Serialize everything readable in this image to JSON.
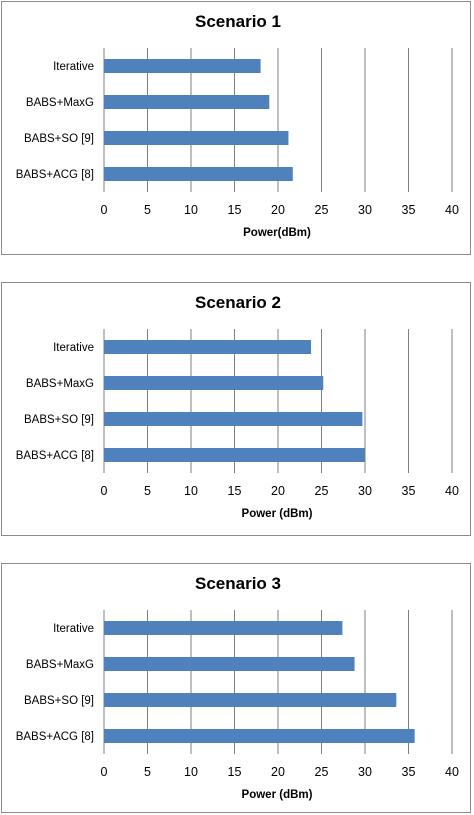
{
  "chart_data": [
    {
      "type": "bar",
      "orientation": "horizontal",
      "title": "Scenario 1",
      "categories": [
        "Iterative",
        "BABS+MaxG",
        "BABS+SO [9]",
        "BABS+ACG [8]"
      ],
      "values": [
        18,
        19,
        21.2,
        21.7
      ],
      "xlabel": "Power(dBm)",
      "ylabel": "",
      "xlim": [
        0,
        40
      ],
      "xticks": [
        "0",
        "5",
        "10",
        "15",
        "20",
        "25",
        "30",
        "35",
        "40"
      ],
      "grid": "vertical",
      "color": "#4f81bd"
    },
    {
      "type": "bar",
      "orientation": "horizontal",
      "title": "Scenario 2",
      "categories": [
        "Iterative",
        "BABS+MaxG",
        "BABS+SO [9]",
        "BABS+ACG [8]"
      ],
      "values": [
        23.8,
        25.2,
        29.7,
        30
      ],
      "xlabel": "Power (dBm)",
      "ylabel": "",
      "xlim": [
        0,
        40
      ],
      "xticks": [
        "0",
        "5",
        "10",
        "15",
        "20",
        "25",
        "30",
        "35",
        "40"
      ],
      "grid": "vertical",
      "color": "#4f81bd"
    },
    {
      "type": "bar",
      "orientation": "horizontal",
      "title": "Scenario 3",
      "categories": [
        "Iterative",
        "BABS+MaxG",
        "BABS+SO [9]",
        "BABS+ACG [8]"
      ],
      "values": [
        27.4,
        28.8,
        33.6,
        35.7
      ],
      "xlabel": "Power (dBm)",
      "ylabel": "",
      "xlim": [
        0,
        40
      ],
      "xticks": [
        "0",
        "5",
        "10",
        "15",
        "20",
        "25",
        "30",
        "35",
        "40"
      ],
      "grid": "vertical",
      "color": "#4f81bd"
    }
  ]
}
